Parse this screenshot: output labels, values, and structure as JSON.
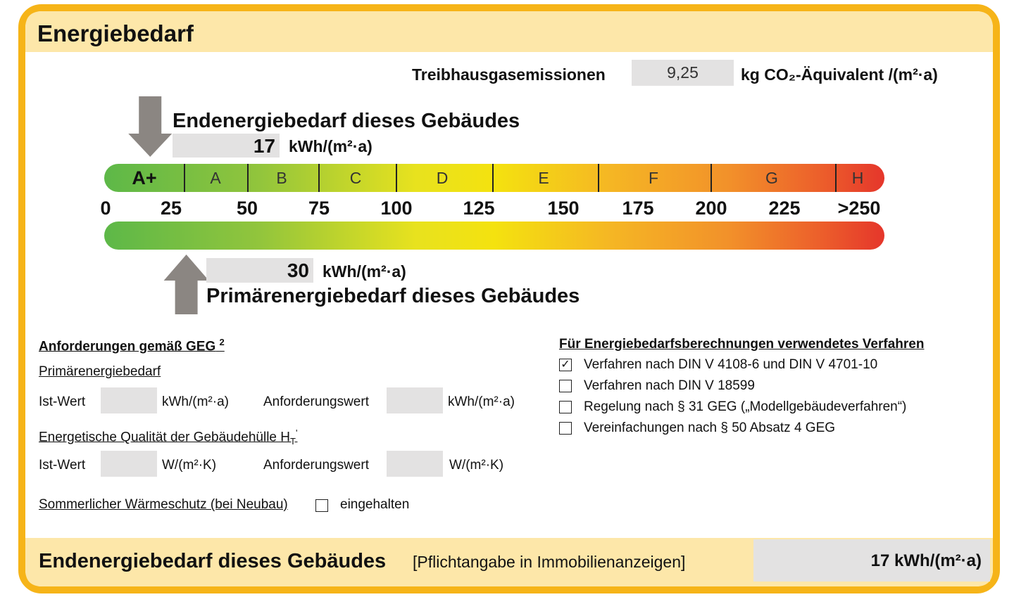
{
  "header": {
    "title": "Energiebedarf"
  },
  "emissions": {
    "label": "Treibhausgasemissionen",
    "value": "9,25",
    "unit": "kg CO₂-Äquivalent /(m²·a)"
  },
  "end_energy": {
    "label": "Endenergiebedarf dieses Gebäudes",
    "value": 17,
    "unit": "kWh/(m²·a)"
  },
  "primary_energy": {
    "label": "Primärenergiebedarf dieses Gebäudes",
    "value": 30,
    "unit": "kWh/(m²·a)"
  },
  "scale": {
    "classes": [
      "A+",
      "A",
      "B",
      "C",
      "D",
      "E",
      "F",
      "G",
      "H"
    ],
    "ticks": [
      0,
      25,
      50,
      75,
      100,
      125,
      150,
      175,
      200,
      225,
      {
        "value": 250,
        "label": ">250"
      }
    ]
  },
  "requirements": {
    "title": "Anforderungen gemäß GEG",
    "footnote": "2",
    "primary": {
      "label": "Primärenergiebedarf",
      "ist": "Ist-Wert",
      "ist_unit": "kWh/(m²·a)",
      "req": "Anforderungswert",
      "req_unit": "kWh/(m²·a)"
    },
    "envelope": {
      "label": "Energetische Qualität der Gebäudehülle H",
      "sub": "T",
      "prime": "'",
      "ist": "Ist-Wert",
      "ist_unit": "W/(m²·K)",
      "req": "Anforderungswert",
      "req_unit": "W/(m²·K)"
    },
    "summer": {
      "label": "Sommerlicher Wärmeschutz (bei Neubau)",
      "checked": false,
      "option": "eingehalten"
    }
  },
  "procedures": {
    "title": "Für Energiebedarfsberechnungen verwendetes Verfahren",
    "items": [
      {
        "label": "Verfahren nach DIN V 4108-6 und DIN V 4701-10",
        "checked": true
      },
      {
        "label": "Verfahren nach DIN V 18599",
        "checked": false
      },
      {
        "label": "Regelung nach § 31 GEG („Modellgebäudeverfahren“)",
        "checked": false
      },
      {
        "label": "Vereinfachungen nach § 50 Absatz 4 GEG",
        "checked": false
      }
    ]
  },
  "footer": {
    "label": "Endenergiebedarf dieses Gebäudes",
    "note": "[Pflichtangabe in Immobilienanzeigen]",
    "value": "17 kWh/(m²·a)"
  }
}
